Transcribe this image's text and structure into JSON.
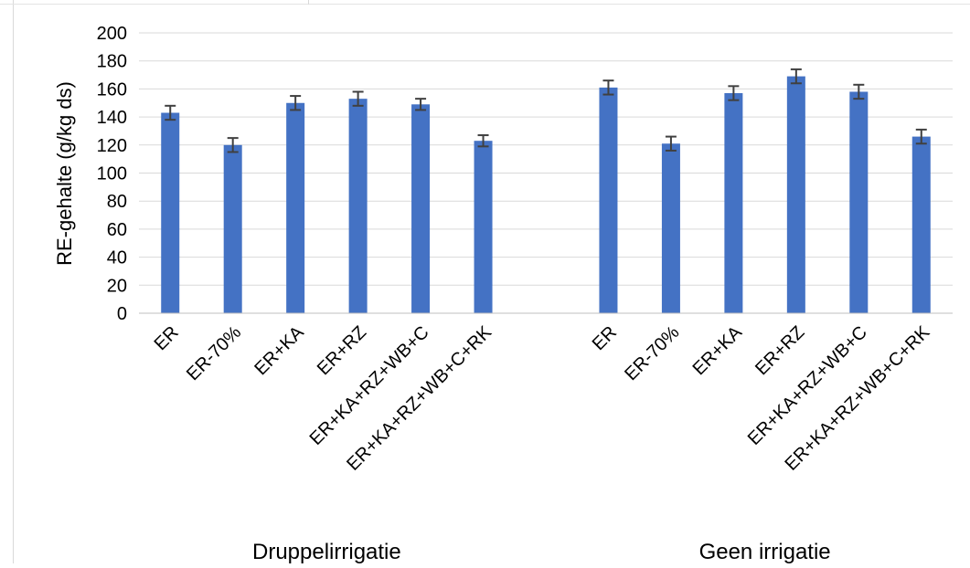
{
  "chart_data": {
    "type": "bar",
    "title": "",
    "ylabel": "RE-gehalte (g/kg ds)",
    "ylim": [
      0,
      200
    ],
    "yticks": [
      0,
      20,
      40,
      60,
      80,
      100,
      120,
      140,
      160,
      180,
      200
    ],
    "grid": true,
    "legend": "none",
    "bar_color": "#4472c4",
    "groups": [
      {
        "label": "Druppelirrigatie",
        "categories": [
          "ER",
          "ER-70%",
          "ER+KA",
          "ER+RZ",
          "ER+KA+RZ+WB+C",
          "ER+KA+RZ+WB+C+RK"
        ],
        "values": [
          143,
          120,
          150,
          153,
          149,
          123
        ],
        "errors": [
          5,
          5,
          5,
          5,
          4,
          4
        ]
      },
      {
        "label": "Geen irrigatie",
        "categories": [
          "ER",
          "ER-70%",
          "ER+KA",
          "ER+RZ",
          "ER+KA+RZ+WB+C",
          "ER+KA+RZ+WB+C+RK"
        ],
        "values": [
          161,
          121,
          157,
          169,
          158,
          126
        ],
        "errors": [
          5,
          5,
          5,
          5,
          5,
          5
        ]
      }
    ]
  }
}
